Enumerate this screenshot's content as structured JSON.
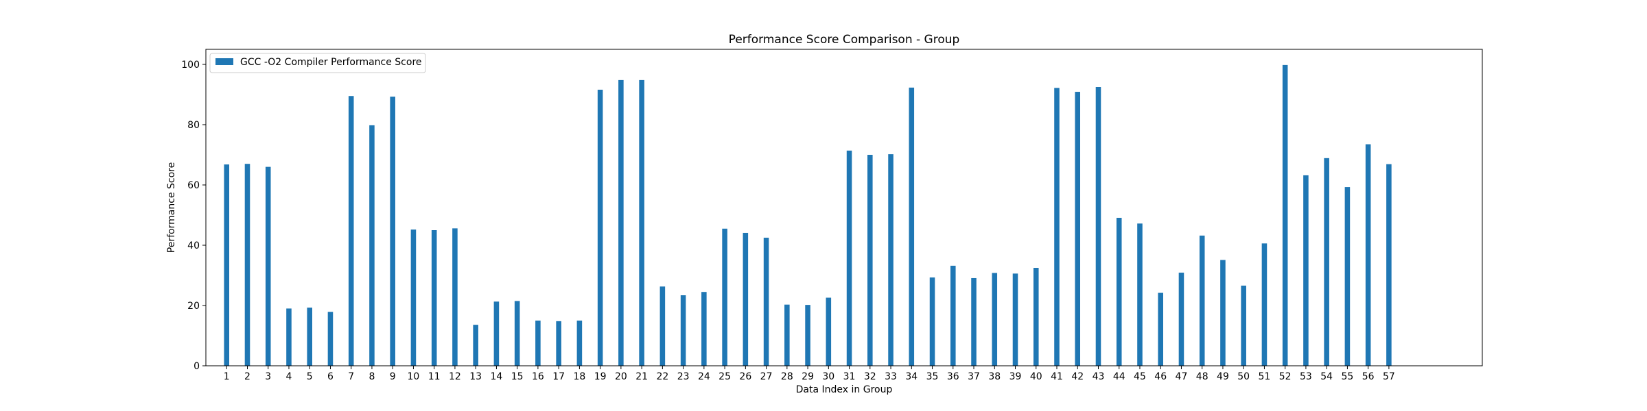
{
  "chart_data": {
    "type": "bar",
    "title": "Performance Score Comparison - Group",
    "xlabel": "Data Index in Group",
    "ylabel": "Performance Score",
    "ylim": [
      0,
      105
    ],
    "yticks": [
      "0",
      "20",
      "40",
      "60",
      "80",
      "100"
    ],
    "xlim": [
      -1,
      60.5
    ],
    "grid": false,
    "legend_position": "top-left",
    "categories": [
      "1",
      "2",
      "3",
      "4",
      "5",
      "6",
      "7",
      "8",
      "9",
      "10",
      "11",
      "12",
      "13",
      "14",
      "15",
      "16",
      "17",
      "18",
      "19",
      "20",
      "21",
      "22",
      "23",
      "24",
      "25",
      "26",
      "27",
      "28",
      "29",
      "30",
      "31",
      "32",
      "33",
      "34",
      "35",
      "36",
      "37",
      "38",
      "39",
      "40",
      "41",
      "42",
      "43",
      "44",
      "45",
      "46",
      "47",
      "48",
      "49",
      "50",
      "51",
      "52",
      "53",
      "54",
      "55",
      "56",
      "57"
    ],
    "series": [
      {
        "name": "GCC -O2 Compiler Performance Score",
        "color": "#1f77b4",
        "values": [
          66.8,
          67.0,
          66.0,
          19.0,
          19.3,
          17.9,
          89.5,
          79.8,
          89.3,
          45.2,
          45.0,
          45.6,
          13.6,
          21.3,
          21.5,
          15.0,
          14.8,
          15.0,
          91.6,
          94.8,
          94.8,
          26.3,
          23.4,
          24.5,
          45.5,
          44.1,
          42.5,
          20.3,
          20.2,
          22.6,
          71.4,
          70.0,
          70.2,
          92.3,
          29.3,
          33.2,
          29.1,
          30.8,
          30.6,
          32.5,
          92.2,
          90.9,
          92.5,
          49.1,
          47.2,
          24.2,
          30.9,
          43.2,
          35.1,
          26.6,
          40.6,
          99.8,
          63.2,
          68.9,
          59.3,
          73.5,
          66.9
        ]
      }
    ]
  }
}
